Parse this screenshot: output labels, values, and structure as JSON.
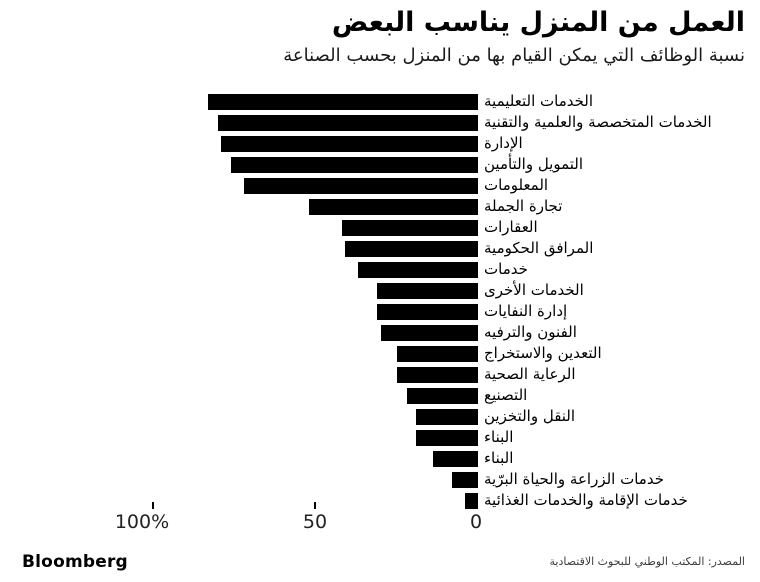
{
  "header": {
    "title": "العمل من المنزل يناسب البعض",
    "subtitle": "نسبة الوظائف التي يمكن القيام بها من المنزل بحسب الصناعة"
  },
  "chart_data": {
    "type": "bar",
    "orientation": "horizontal_rtl",
    "title": "العمل من المنزل يناسب البعض",
    "subtitle": "نسبة الوظائف التي يمكن القيام بها من المنزل بحسب الصناعة",
    "categories": [
      "الخدمات التعليمية",
      "الخدمات المتخصصة والعلمية والتقنية",
      "الإدارة",
      "التمويل والتأمين",
      "المعلومات",
      "تجارة الجملة",
      "العقارات",
      "المرافق الحكومية",
      "خدمات",
      "الخدمات الأخرى",
      "إدارة النفايات",
      "الفنون والترفيه",
      "التعدين والاستخراج",
      "الرعاية الصحية",
      "التصنيع",
      "النقل والتخزين",
      "البناء",
      "البناء",
      "خدمات الزراعة والحياة البرّية",
      "خدمات الإقامة والخدمات الغذائية"
    ],
    "values": [
      83,
      80,
      79,
      76,
      72,
      52,
      42,
      41,
      37,
      31,
      31,
      30,
      25,
      25,
      22,
      19,
      19,
      14,
      8,
      4
    ],
    "xlim": [
      0,
      100
    ],
    "x_tick_labels": [
      "100%",
      "50",
      "0"
    ],
    "x_tick_values": [
      100,
      50,
      0
    ],
    "bar_color": "#000000",
    "grid": false,
    "legend": null
  },
  "footer": {
    "brand": "Bloomberg",
    "source": "المصدر: المكتب الوطني للبحوث الاقتصادية"
  }
}
